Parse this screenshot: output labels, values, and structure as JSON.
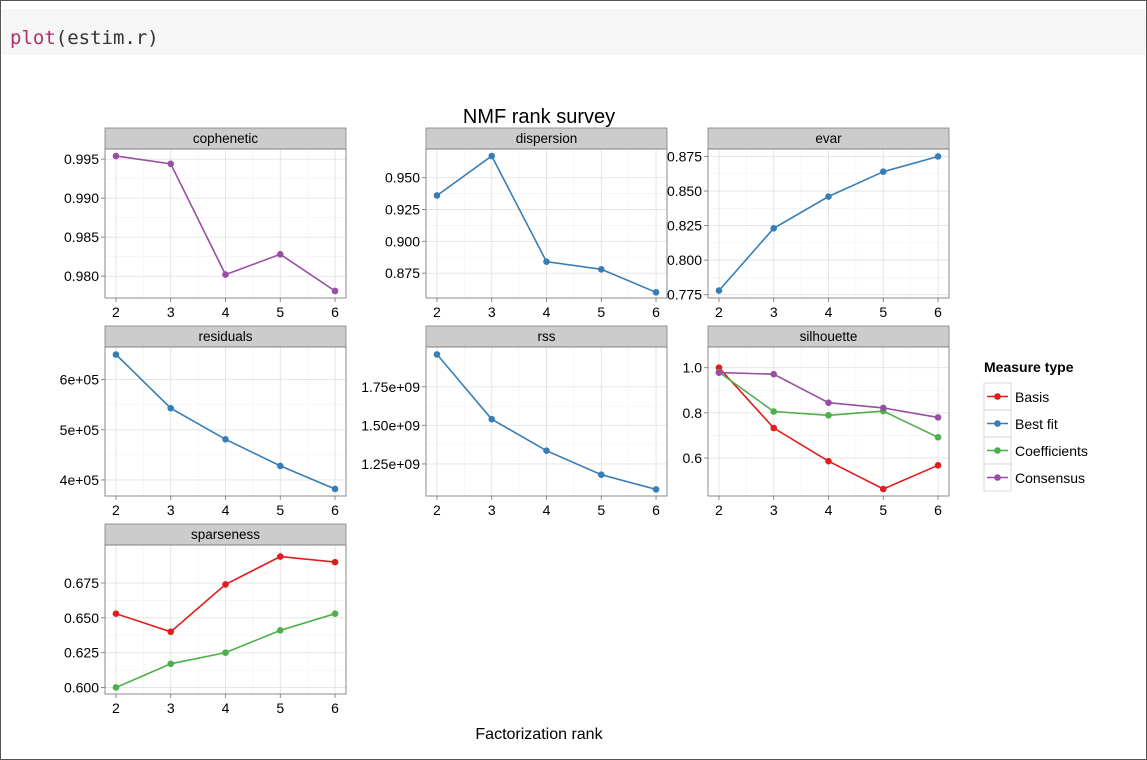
{
  "code": {
    "function": "plot",
    "args": "(estim.r)"
  },
  "chart_data": {
    "type": "line",
    "title": "NMF rank survey",
    "xlabel": "Factorization rank",
    "x": [
      2,
      3,
      4,
      5,
      6
    ],
    "grid": true,
    "legend": {
      "title": "Measure type",
      "placement": "right",
      "entries": [
        {
          "name": "Basis",
          "color": "#e41a1c"
        },
        {
          "name": "Best fit",
          "color": "#377eb8"
        },
        {
          "name": "Coefficients",
          "color": "#4daf4a"
        },
        {
          "name": "Consensus",
          "color": "#984ea3"
        }
      ]
    },
    "facets": [
      {
        "name": "cophenetic",
        "ylim": [
          0.9772,
          0.9963
        ],
        "yticks": [
          0.98,
          0.985,
          0.99,
          0.995
        ],
        "yticklabels": [
          "0.980",
          "0.985",
          "0.990",
          "0.995"
        ],
        "series": [
          {
            "name": "Consensus",
            "values": [
              0.9954,
              0.9944,
              0.9802,
              0.9828,
              0.9781
            ]
          }
        ]
      },
      {
        "name": "dispersion",
        "ylim": [
          0.8555,
          0.9725
        ],
        "yticks": [
          0.875,
          0.9,
          0.925,
          0.95
        ],
        "yticklabels": [
          "0.875",
          "0.900",
          "0.925",
          "0.950"
        ],
        "series": [
          {
            "name": "Best fit",
            "values": [
              0.936,
              0.967,
              0.884,
              0.878,
              0.86
            ]
          }
        ]
      },
      {
        "name": "evar",
        "ylim": [
          0.7726,
          0.8804
        ],
        "yticks": [
          0.775,
          0.8,
          0.825,
          0.85,
          0.875
        ],
        "yticklabels": [
          "0.775",
          "0.800",
          "0.825",
          "0.850",
          "0.875"
        ],
        "series": [
          {
            "name": "Best fit",
            "values": [
              0.778,
              0.823,
              0.846,
              0.864,
              0.875
            ]
          }
        ]
      },
      {
        "name": "residuals",
        "ylim": [
          368000,
          665000
        ],
        "yticks": [
          400000,
          500000,
          600000
        ],
        "yticklabels": [
          "4e+05",
          "5e+05",
          "6e+05"
        ],
        "series": [
          {
            "name": "Best fit",
            "values": [
              650000,
              543000,
              481000,
              428000,
              382000
            ]
          }
        ]
      },
      {
        "name": "rss",
        "ylim": [
          1042000000,
          2008000000
        ],
        "yticks": [
          1250000000,
          1500000000,
          1750000000
        ],
        "yticklabels": [
          "1.25e+09",
          "1.50e+09",
          "1.75e+09"
        ],
        "series": [
          {
            "name": "Best fit",
            "values": [
              1960000000,
              1540000000,
              1336000000,
              1180000000,
              1085000000
            ]
          }
        ]
      },
      {
        "name": "silhouette",
        "ylim": [
          0.432,
          1.0915
        ],
        "yticks": [
          0.6,
          0.8,
          1.0
        ],
        "yticklabels": [
          "0.6",
          "0.8",
          "1.0"
        ],
        "series": [
          {
            "name": "Basis",
            "values": [
              1.0,
              0.733,
              0.586,
              0.463,
              0.568
            ]
          },
          {
            "name": "Coefficients",
            "values": [
              0.98,
              0.806,
              0.789,
              0.808,
              0.692
            ]
          },
          {
            "name": "Consensus",
            "values": [
              0.978,
              0.971,
              0.845,
              0.822,
              0.78
            ]
          }
        ]
      },
      {
        "name": "sparseness",
        "ylim": [
          0.5953,
          0.7023
        ],
        "yticks": [
          0.6,
          0.625,
          0.65,
          0.675
        ],
        "yticklabels": [
          "0.600",
          "0.625",
          "0.650",
          "0.675"
        ],
        "series": [
          {
            "name": "Basis",
            "values": [
              0.653,
              0.64,
              0.674,
              0.694,
              0.69
            ]
          },
          {
            "name": "Coefficients",
            "values": [
              0.6,
              0.617,
              0.625,
              0.641,
              0.653
            ]
          }
        ]
      }
    ]
  }
}
